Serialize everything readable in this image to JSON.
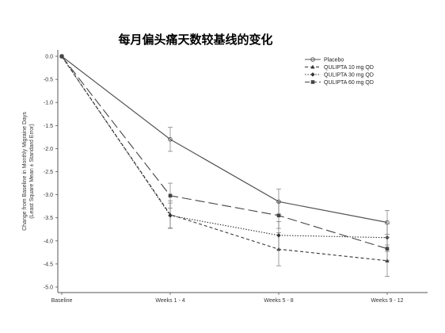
{
  "chart_data": {
    "type": "line",
    "title": "每月偏头痛天数较基线的变化",
    "ylabel_line1": "Change from Baseline in Monthly Migraine Days",
    "ylabel_line2": "(Least Square Mean ± Standard Error)",
    "xlabel": "",
    "categories": [
      "Baseline",
      "Weeks 1 - 4",
      "Weeks 5 - 8",
      "Weeks 9 - 12"
    ],
    "ylim": [
      -5.0,
      0.0
    ],
    "yticks": [
      0.0,
      -0.5,
      -1.0,
      -1.5,
      -2.0,
      -2.5,
      -3.0,
      -3.5,
      -4.0,
      -4.5,
      -5.0
    ],
    "ytick_labels": [
      "0.0",
      "-0.5",
      "-1.0",
      "-1.5",
      "-2.0",
      "-2.5",
      "-3.0",
      "-3.5",
      "-4.0",
      "-4.5",
      "-5.0"
    ],
    "legend_position": "top-right",
    "grid": false,
    "series": [
      {
        "name": "Placebo",
        "style": "solid",
        "marker": "circle",
        "color": "#555555",
        "values": [
          0.0,
          -1.8,
          -3.15,
          -3.6
        ],
        "errors": [
          0.0,
          0.26,
          0.27,
          0.26
        ]
      },
      {
        "name": "QULIPTA 10 mg QD",
        "style": "short-dash",
        "marker": "triangle",
        "color": "#333333",
        "values": [
          0.0,
          -3.43,
          -4.18,
          -4.43
        ],
        "errors": [
          0.0,
          0.3,
          0.36,
          0.34
        ]
      },
      {
        "name": "QULIPTA 30 mg QD",
        "style": "dotted",
        "marker": "diamond",
        "color": "#333333",
        "values": [
          0.0,
          -3.45,
          -3.88,
          -3.93
        ],
        "errors": [
          0.0,
          0.27,
          0.3,
          0.3
        ]
      },
      {
        "name": "QULIPTA 60 mg QD",
        "style": "long-dash",
        "marker": "square",
        "color": "#444444",
        "values": [
          0.0,
          -3.02,
          -3.45,
          -4.17
        ],
        "errors": [
          0.0,
          0.27,
          0.28,
          0.25
        ]
      }
    ]
  }
}
